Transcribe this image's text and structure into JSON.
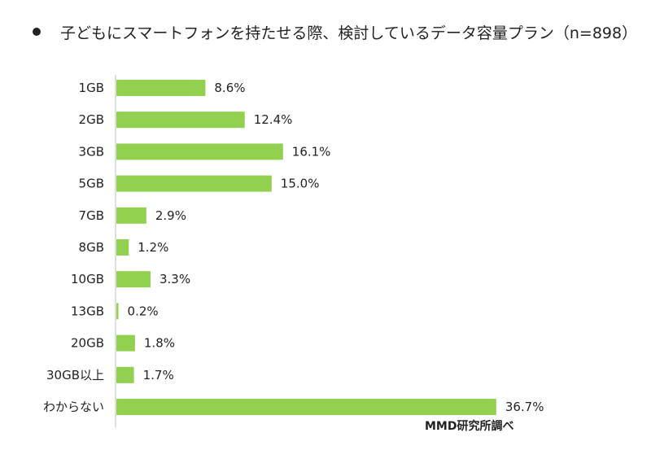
{
  "chart_data": {
    "type": "bar",
    "orientation": "horizontal",
    "title": "子どもにスマートフォンを持たせる際、検討しているデータ容量プラン（n=898）",
    "categories": [
      "1GB",
      "2GB",
      "3GB",
      "5GB",
      "7GB",
      "8GB",
      "10GB",
      "13GB",
      "20GB",
      "30GB以上",
      "わからない"
    ],
    "values": [
      8.6,
      12.4,
      16.1,
      15.0,
      2.9,
      1.2,
      3.3,
      0.2,
      1.8,
      1.7,
      36.7
    ],
    "value_labels": [
      "8.6%",
      "12.4%",
      "16.1%",
      "15.0%",
      "2.9%",
      "1.2%",
      "3.3%",
      "0.2%",
      "1.8%",
      "1.7%",
      "36.7%"
    ],
    "unit": "%",
    "bar_color": "#92D050",
    "grid": false,
    "legend": "none",
    "source": "MMD研究所調べ"
  }
}
